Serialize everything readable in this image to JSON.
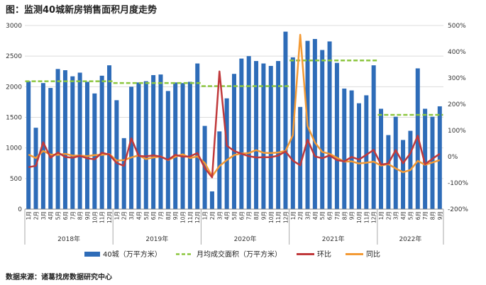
{
  "title": "图：监测40城新房销售面积月度走势",
  "source": "数据来源：诸葛找房数据研究中心",
  "colors": {
    "bar": "#2e6cb8",
    "avg": "#8cc63f",
    "mom": "#c0393b",
    "yoy": "#f39a35"
  },
  "chart_data": {
    "type": "bar",
    "years": [
      "2018年",
      "2019年",
      "2020年",
      "2021年",
      "2022年"
    ],
    "month_labels": [
      "1月",
      "2月",
      "3月",
      "4月",
      "5月",
      "6月",
      "7月",
      "8月",
      "9月",
      "10月",
      "11月",
      "12月"
    ],
    "months_2022": 9,
    "y_left_ticks": [
      "0",
      "500",
      "1000",
      "1500",
      "2000",
      "2500",
      "3000"
    ],
    "y_right_ticks": [
      "-200%",
      "-100%",
      "0%",
      "100%",
      "200%",
      "300%",
      "400%",
      "500%"
    ],
    "ylim_left": [
      0,
      3000
    ],
    "ylim_right": [
      -200,
      500
    ],
    "series": [
      {
        "name": "40城（万平方米）",
        "type": "bar",
        "axis": "left",
        "values": [
          2090,
          1330,
          2060,
          1980,
          2290,
          2270,
          2170,
          2230,
          2080,
          1890,
          2180,
          2350,
          1780,
          1160,
          2000,
          2070,
          2090,
          2190,
          2200,
          1930,
          2070,
          2060,
          2080,
          2380,
          1360,
          290,
          1270,
          1810,
          2210,
          2460,
          2500,
          2420,
          2380,
          2340,
          2420,
          2900,
          2480,
          1670,
          2750,
          2780,
          2600,
          2740,
          2390,
          1970,
          1940,
          1730,
          1860,
          2350,
          1640,
          1210,
          1510,
          1130,
          1280,
          2300,
          1640,
          1510,
          1680
        ]
      },
      {
        "name": "月均成交面积（万平方米）",
        "type": "segments",
        "axis": "left",
        "values": [
          2090,
          2060,
          2010,
          2430,
          1540
        ]
      },
      {
        "name": "环比",
        "type": "line",
        "axis": "right",
        "values": [
          -40,
          -35,
          55,
          -4,
          16,
          -1,
          -4,
          3,
          -6,
          -10,
          15,
          8,
          -24,
          -35,
          70,
          3,
          1,
          5,
          0,
          -12,
          7,
          0,
          1,
          14,
          -43,
          -79,
          325,
          42,
          22,
          11,
          2,
          -3,
          -2,
          -2,
          4,
          20,
          -15,
          -33,
          65,
          1,
          -6,
          5,
          -13,
          -18,
          -1,
          -11,
          7,
          26,
          -30,
          -26,
          25,
          -25,
          13,
          80,
          -29,
          -8,
          11
        ]
      },
      {
        "name": "同比",
        "type": "line",
        "axis": "right",
        "values": [
          8,
          -5,
          22,
          8,
          7,
          11,
          4,
          4,
          2,
          6,
          7,
          10,
          -15,
          -13,
          -3,
          5,
          -9,
          -3,
          1,
          -13,
          0,
          9,
          -5,
          1,
          -24,
          -75,
          -36,
          -13,
          6,
          12,
          14,
          25,
          15,
          14,
          16,
          22,
          82,
          465,
          117,
          54,
          18,
          11,
          -4,
          -19,
          -18,
          -26,
          -23,
          -19,
          -34,
          -28,
          -45,
          -59,
          -51,
          -16,
          -31,
          -22,
          -13
        ]
      }
    ]
  }
}
